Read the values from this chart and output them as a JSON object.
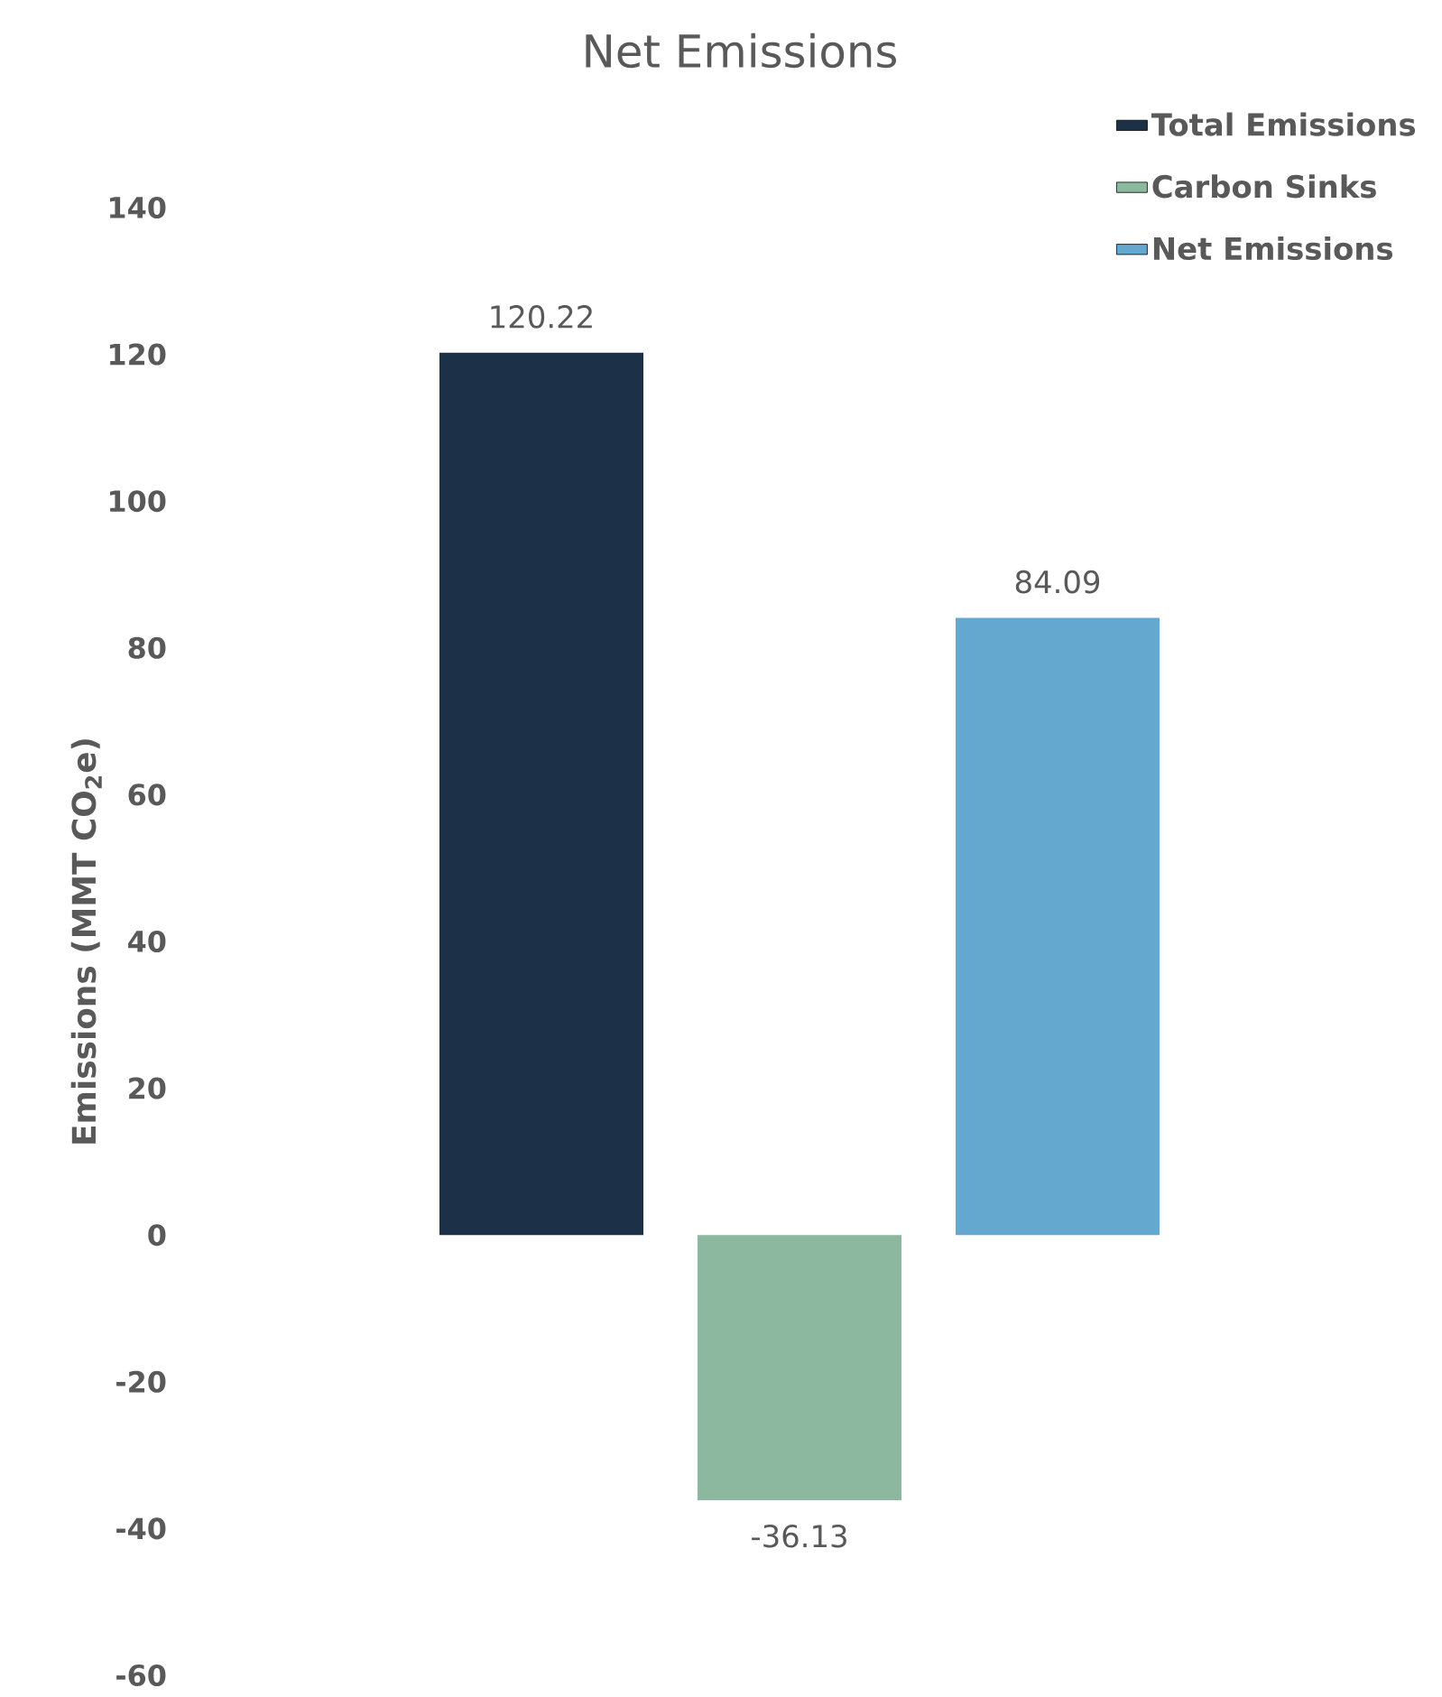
{
  "chart_data": {
    "type": "bar",
    "title": "Net Emissions",
    "ylabel": "Emissions (MMT CO$_{2}$e)",
    "categories": [
      null
    ],
    "series": [
      {
        "name": "Total Emissions",
        "color": "#1c3048",
        "values": [
          120.22
        ]
      },
      {
        "name": "Carbon Sinks",
        "color": "#8db8a0",
        "values": [
          -36.13
        ]
      },
      {
        "name": "Net Emissions",
        "color": "#64a8d0",
        "values": [
          84.09
        ]
      }
    ],
    "ylim": [
      -60,
      140
    ],
    "yticks": [
      -60,
      -40,
      -20,
      0,
      20,
      40,
      60,
      80,
      100,
      120,
      140
    ],
    "data_labels": true,
    "legend": "top right",
    "grid": false
  }
}
